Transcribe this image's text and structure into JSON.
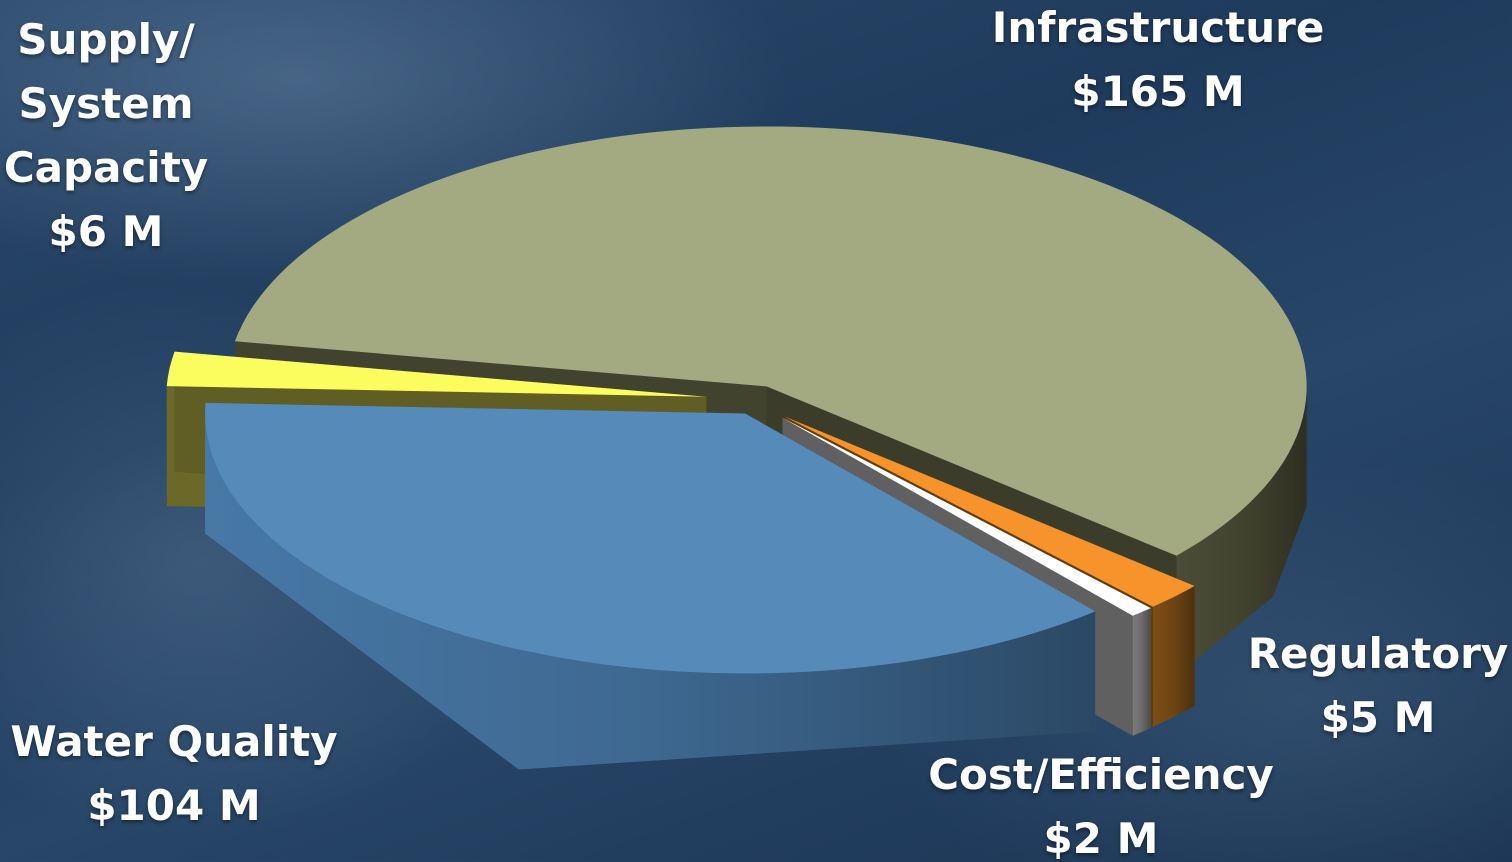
{
  "chart_data": {
    "type": "pie",
    "style": "3d-exploded",
    "categories": [
      "Infrastructure",
      "Regulatory",
      "Cost/Efficiency",
      "Water Quality",
      "Supply/ System Capacity"
    ],
    "values": [
      165,
      5,
      2,
      104,
      6
    ],
    "unit": "$ M",
    "slices": [
      {
        "name": "Infrastructure",
        "label_lines": [
          "Infrastructure",
          "$165 M"
        ],
        "value": 165,
        "top_color": "#a3a981",
        "side_color": "#42432f"
      },
      {
        "name": "Regulatory",
        "label_lines": [
          "Regulatory",
          "$5 M"
        ],
        "value": 5,
        "top_color": "#f7932b",
        "side_color": "#6d4414"
      },
      {
        "name": "Cost/Efficiency",
        "label_lines": [
          "Cost/Efficiency",
          "$2 M"
        ],
        "value": 2,
        "top_color": "#ffffff",
        "side_color": "#6b6b6b"
      },
      {
        "name": "Water Quality",
        "label_lines": [
          "Water Quality",
          "$104 M"
        ],
        "value": 104,
        "top_color": "#558ab9",
        "side_color": "#3e6890"
      },
      {
        "name": "Supply/ System Capacity",
        "label_lines": [
          "Supply/",
          "System",
          "Capacity",
          "$6 M"
        ],
        "value": 6,
        "top_color": "#fbfc5e",
        "side_color": "#6b6828"
      }
    ],
    "legend": "none",
    "title": ""
  }
}
